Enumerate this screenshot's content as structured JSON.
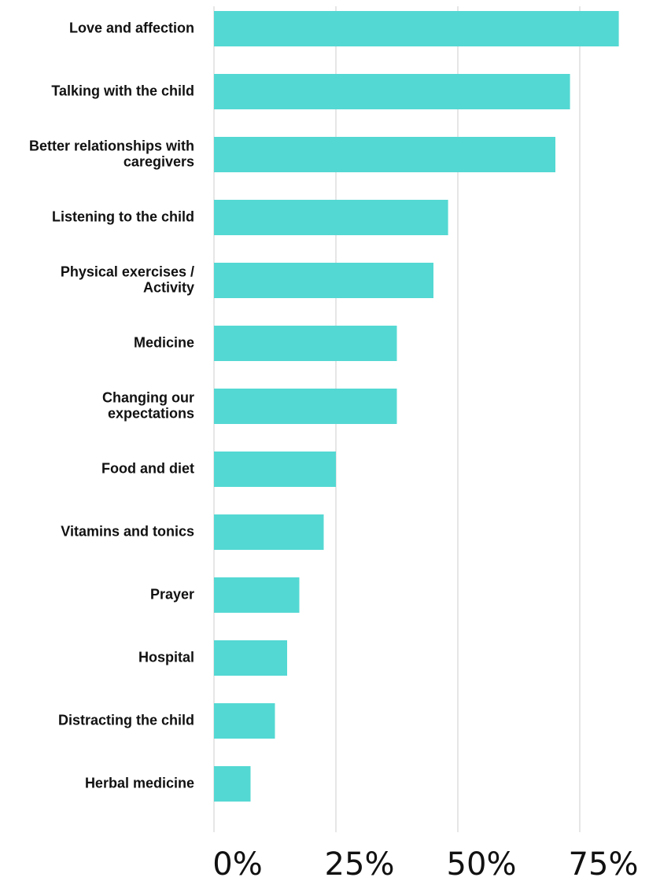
{
  "chart_data": {
    "type": "bar",
    "orientation": "horizontal",
    "categories": [
      "Love and affection",
      "Talking with the child",
      "Better relationships with caregivers",
      "Listening to the child",
      "Physical exercises / Activity",
      "Medicine",
      "Changing our expectations",
      "Food and diet",
      "Vitamins and tonics",
      "Prayer",
      "Hospital",
      "Distracting the child",
      "Herbal medicine"
    ],
    "category_label_lines": [
      [
        "Love and affection"
      ],
      [
        "Talking with the child"
      ],
      [
        "Better relationships with",
        "caregivers"
      ],
      [
        "Listening to the child"
      ],
      [
        "Physical exercises /",
        "Activity"
      ],
      [
        "Medicine"
      ],
      [
        "Changing our",
        "expectations"
      ],
      [
        "Food and diet"
      ],
      [
        "Vitamins and tonics"
      ],
      [
        "Prayer"
      ],
      [
        "Hospital"
      ],
      [
        "Distracting the child"
      ],
      [
        "Herbal medicine"
      ]
    ],
    "values": [
      83,
      73,
      70,
      48,
      45,
      37.5,
      37.5,
      25,
      22.5,
      17.5,
      15,
      12.5,
      7.5
    ],
    "x_ticks": [
      0,
      25,
      50,
      75
    ],
    "x_tick_labels": [
      "0%",
      "25%",
      "50%",
      "75%"
    ],
    "xlim": [
      0,
      85
    ],
    "grid": true,
    "bar_color": "#54d8d3",
    "grid_color": "#e6e6e6",
    "title": "",
    "xlabel": "",
    "ylabel": ""
  }
}
